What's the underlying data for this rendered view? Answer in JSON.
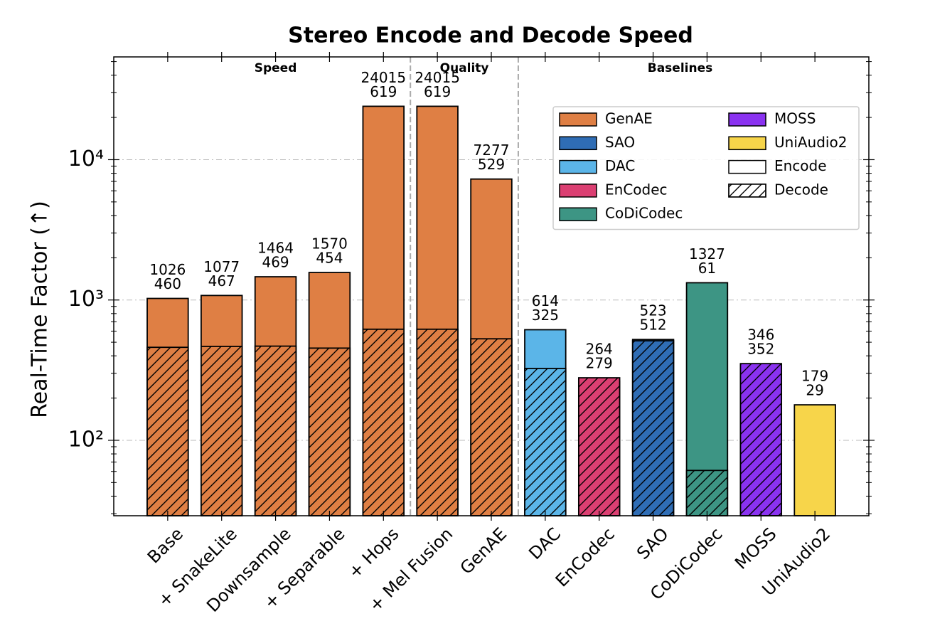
{
  "chart_data": {
    "type": "bar",
    "title": "Stereo Encode and Decode Speed",
    "ylabel": "Real-Time Factor (↑)",
    "groups": [
      {
        "label": "Speed",
        "categories": [
          "Base",
          "+ SnakeLite",
          "Downsample",
          "+ Separable",
          "+ Hops"
        ]
      },
      {
        "label": "Quality",
        "categories": [
          "+ Mel Fusion",
          "GenAE"
        ]
      },
      {
        "label": "Baselines",
        "categories": [
          "DAC",
          "EnCodec",
          "SAO",
          "CoDiCodec",
          "MOSS",
          "UniAudio2"
        ]
      }
    ],
    "colors": [
      "#df7f44",
      "#df7f44",
      "#df7f44",
      "#df7f44",
      "#df7f44",
      "#df7f44",
      "#df7f44",
      "#5bb5e8",
      "#db3f72",
      "#2f6db5",
      "#3d9584",
      "#8a32f0",
      "#f7d54a"
    ],
    "series": [
      {
        "name": "Encode",
        "hatch": false,
        "values": [
          1026,
          1077,
          1464,
          1570,
          24015,
          24015,
          7277,
          614,
          264,
          523,
          1327,
          346,
          179
        ]
      },
      {
        "name": "Decode",
        "hatch": true,
        "values": [
          460,
          467,
          469,
          454,
          619,
          619,
          529,
          325,
          279,
          512,
          61,
          352,
          29
        ]
      }
    ],
    "models": [
      {
        "name": "GenAE",
        "color": "#df7f44"
      },
      {
        "name": "SAO",
        "color": "#2f6db5"
      },
      {
        "name": "DAC",
        "color": "#5bb5e8"
      },
      {
        "name": "EnCodec",
        "color": "#db3f72"
      },
      {
        "name": "CoDiCodec",
        "color": "#3d9584"
      },
      {
        "name": "MOSS",
        "color": "#8a32f0"
      },
      {
        "name": "UniAudio2",
        "color": "#f7d54a"
      }
    ],
    "legend": "upper right",
    "log_y": true,
    "grid": true,
    "ylim": [
      29,
      54000
    ],
    "yticks": [
      {
        "value": 100,
        "label": "10²"
      },
      {
        "value": 1000,
        "label": "10³"
      },
      {
        "value": 10000,
        "label": "10⁴"
      }
    ],
    "yminorticks": [
      30,
      40,
      50,
      60,
      70,
      80,
      90,
      200,
      300,
      400,
      500,
      600,
      700,
      800,
      900,
      2000,
      3000,
      4000,
      5000,
      6000,
      7000,
      8000,
      9000,
      20000,
      30000,
      40000,
      50000
    ]
  }
}
